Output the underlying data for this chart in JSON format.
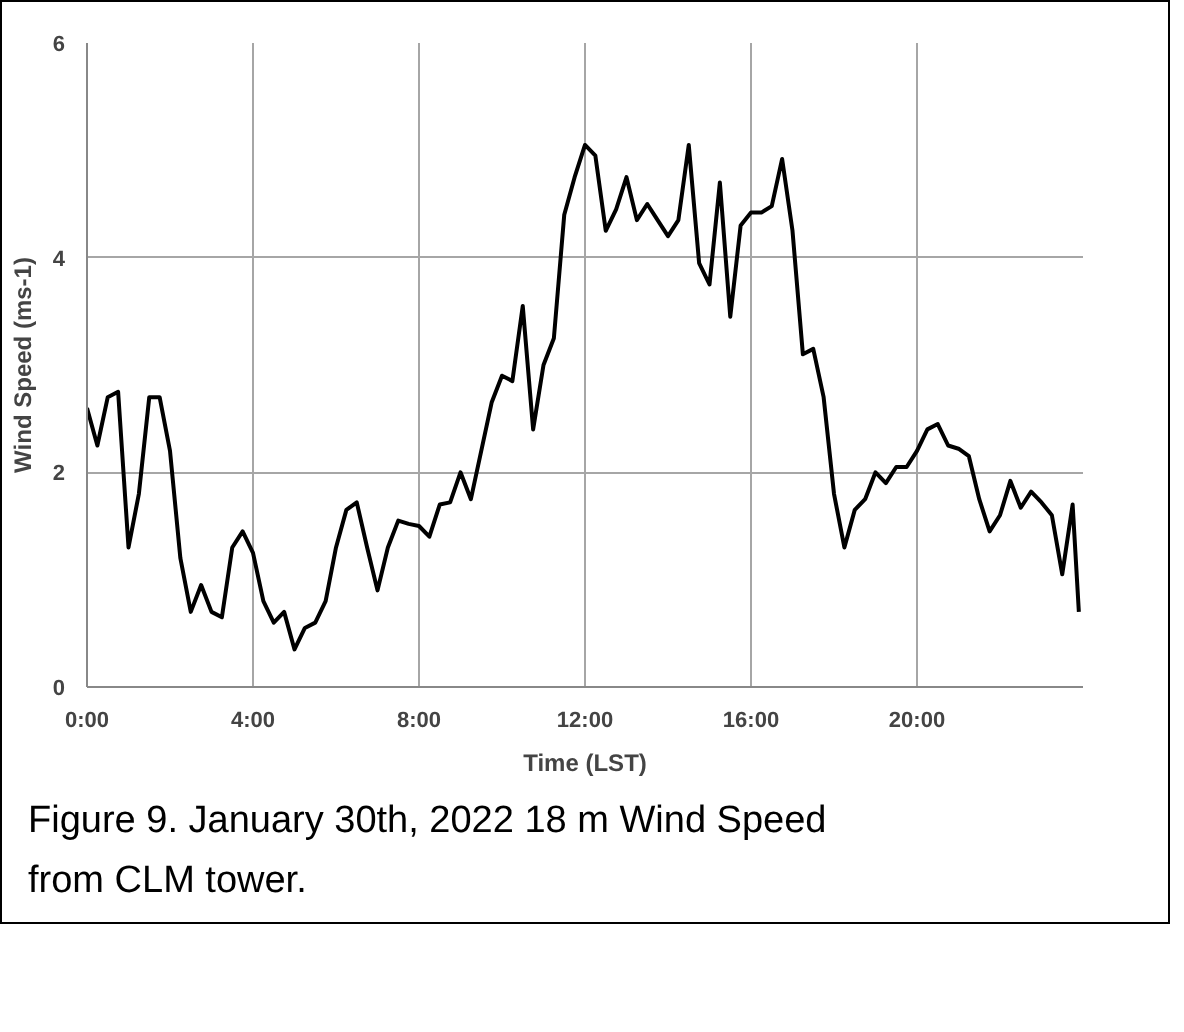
{
  "chart_data": {
    "type": "line",
    "xlabel": "Time (LST)",
    "ylabel": "Wind Speed (ms-1)",
    "x": [
      0,
      0.25,
      0.5,
      0.75,
      1,
      1.25,
      1.5,
      1.75,
      2,
      2.25,
      2.5,
      2.75,
      3,
      3.25,
      3.5,
      3.75,
      4,
      4.25,
      4.5,
      4.75,
      5,
      5.25,
      5.5,
      5.75,
      6,
      6.25,
      6.5,
      6.75,
      7,
      7.25,
      7.5,
      7.75,
      8,
      8.25,
      8.5,
      8.75,
      9,
      9.25,
      9.5,
      9.75,
      10,
      10.25,
      10.5,
      10.75,
      11,
      11.25,
      11.5,
      11.75,
      12,
      12.25,
      12.5,
      12.75,
      13,
      13.25,
      13.5,
      13.75,
      14,
      14.25,
      14.5,
      14.75,
      15,
      15.25,
      15.5,
      15.75,
      16,
      16.25,
      16.5,
      16.75,
      17,
      17.25,
      17.5,
      17.75,
      18,
      18.25,
      18.5,
      18.75,
      19,
      19.25,
      19.5,
      19.75,
      20,
      20.25,
      20.5,
      20.75,
      21,
      21.25,
      21.5,
      21.75,
      22,
      22.25,
      22.5,
      22.75,
      23,
      23.25,
      23.5,
      23.75,
      23.9
    ],
    "series": [
      {
        "color": "#000000",
        "values": [
          2.6,
          2.25,
          2.7,
          2.75,
          1.3,
          1.8,
          2.7,
          2.7,
          2.2,
          1.2,
          0.7,
          0.95,
          0.7,
          0.65,
          1.3,
          1.45,
          1.25,
          0.8,
          0.6,
          0.7,
          0.35,
          0.55,
          0.6,
          0.8,
          1.3,
          1.65,
          1.72,
          1.3,
          0.9,
          1.3,
          1.55,
          1.52,
          1.5,
          1.4,
          1.7,
          1.72,
          2.0,
          1.75,
          2.2,
          2.65,
          2.9,
          2.85,
          3.55,
          2.4,
          3.0,
          3.25,
          4.4,
          4.75,
          5.05,
          4.95,
          4.25,
          4.45,
          4.75,
          4.35,
          4.5,
          4.35,
          4.2,
          4.35,
          5.05,
          3.95,
          3.75,
          4.7,
          3.45,
          4.3,
          4.42,
          4.42,
          4.48,
          4.92,
          4.25,
          3.1,
          3.15,
          2.7,
          1.8,
          1.3,
          1.65,
          1.75,
          2.0,
          1.9,
          2.05,
          2.05,
          2.2,
          2.4,
          2.45,
          2.25,
          2.22,
          2.15,
          1.75,
          1.45,
          1.6,
          1.92,
          1.67,
          1.82,
          1.72,
          1.6,
          1.05,
          1.7,
          0.7
        ]
      }
    ],
    "xlim": [
      0,
      24
    ],
    "xticks": [
      {
        "value": 0,
        "label": "0:00"
      },
      {
        "value": 4,
        "label": "4:00"
      },
      {
        "value": 8,
        "label": "8:00"
      },
      {
        "value": 12,
        "label": "12:00"
      },
      {
        "value": 16,
        "label": "16:00"
      },
      {
        "value": 20,
        "label": "20:00"
      }
    ],
    "ylim": [
      0,
      6
    ],
    "yticks": [
      0,
      2,
      4,
      6
    ],
    "grid": true,
    "marker": "none",
    "line_style": "solid",
    "annotations": [
      "Figure 9. January 30th, 2022 18 m Wind Speed from CLM tower."
    ]
  }
}
